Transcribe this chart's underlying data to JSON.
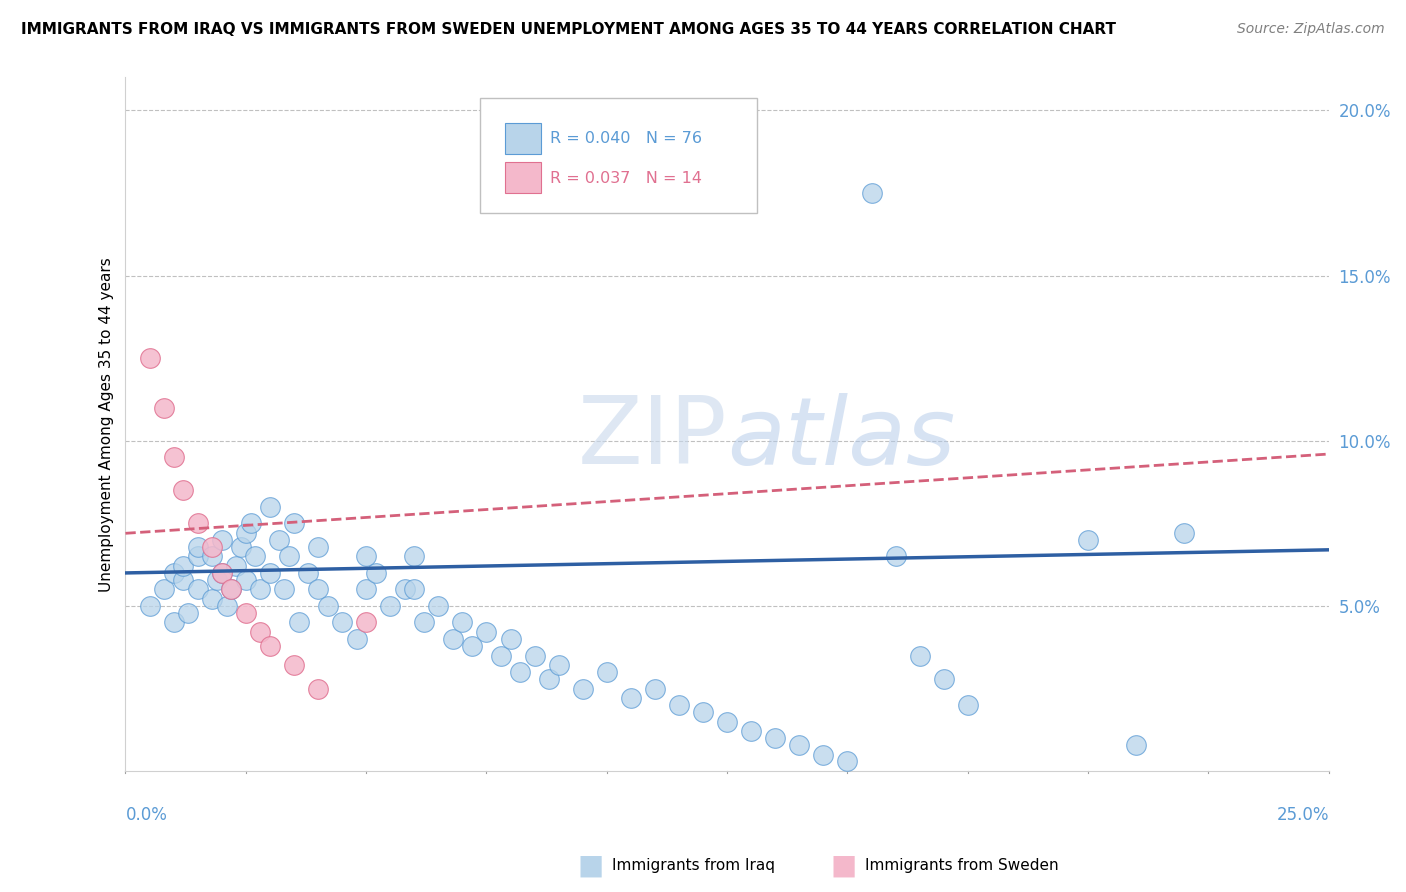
{
  "title": "IMMIGRANTS FROM IRAQ VS IMMIGRANTS FROM SWEDEN UNEMPLOYMENT AMONG AGES 35 TO 44 YEARS CORRELATION CHART",
  "source": "Source: ZipAtlas.com",
  "ylabel": "Unemployment Among Ages 35 to 44 years",
  "xlim": [
    0.0,
    0.25
  ],
  "ylim": [
    0.0,
    0.21
  ],
  "yticks": [
    0.05,
    0.1,
    0.15,
    0.2
  ],
  "ytick_labels": [
    "5.0%",
    "10.0%",
    "15.0%",
    "20.0%"
  ],
  "xtick_labels": [
    "0.0%",
    "25.0%"
  ],
  "iraq_R": 0.04,
  "iraq_N": 76,
  "sweden_R": 0.037,
  "sweden_N": 14,
  "iraq_color": "#b8d4ea",
  "iraq_edge_color": "#5b9bd5",
  "sweden_color": "#f4b8cb",
  "sweden_edge_color": "#e07090",
  "iraq_line_color": "#2e5fa3",
  "sweden_line_color": "#d4607a",
  "watermark_color": "#d0dff0",
  "iraq_x": [
    0.005,
    0.008,
    0.01,
    0.01,
    0.012,
    0.012,
    0.013,
    0.015,
    0.015,
    0.015,
    0.018,
    0.018,
    0.019,
    0.02,
    0.02,
    0.021,
    0.022,
    0.023,
    0.024,
    0.025,
    0.025,
    0.026,
    0.027,
    0.028,
    0.03,
    0.03,
    0.032,
    0.033,
    0.034,
    0.035,
    0.036,
    0.038,
    0.04,
    0.04,
    0.042,
    0.045,
    0.048,
    0.05,
    0.05,
    0.052,
    0.055,
    0.058,
    0.06,
    0.06,
    0.062,
    0.065,
    0.068,
    0.07,
    0.072,
    0.075,
    0.078,
    0.08,
    0.082,
    0.085,
    0.088,
    0.09,
    0.095,
    0.1,
    0.105,
    0.11,
    0.115,
    0.12,
    0.125,
    0.13,
    0.135,
    0.14,
    0.145,
    0.15,
    0.155,
    0.16,
    0.165,
    0.17,
    0.175,
    0.2,
    0.21,
    0.22
  ],
  "iraq_y": [
    0.05,
    0.055,
    0.06,
    0.045,
    0.058,
    0.062,
    0.048,
    0.065,
    0.055,
    0.068,
    0.052,
    0.065,
    0.058,
    0.07,
    0.06,
    0.05,
    0.055,
    0.062,
    0.068,
    0.072,
    0.058,
    0.075,
    0.065,
    0.055,
    0.08,
    0.06,
    0.07,
    0.055,
    0.065,
    0.075,
    0.045,
    0.06,
    0.055,
    0.068,
    0.05,
    0.045,
    0.04,
    0.065,
    0.055,
    0.06,
    0.05,
    0.055,
    0.055,
    0.065,
    0.045,
    0.05,
    0.04,
    0.045,
    0.038,
    0.042,
    0.035,
    0.04,
    0.03,
    0.035,
    0.028,
    0.032,
    0.025,
    0.03,
    0.022,
    0.025,
    0.02,
    0.018,
    0.015,
    0.012,
    0.01,
    0.008,
    0.005,
    0.003,
    0.175,
    0.065,
    0.035,
    0.028,
    0.02,
    0.07,
    0.008,
    0.072
  ],
  "sweden_x": [
    0.005,
    0.008,
    0.01,
    0.012,
    0.015,
    0.018,
    0.02,
    0.022,
    0.025,
    0.028,
    0.03,
    0.035,
    0.04,
    0.05
  ],
  "sweden_y": [
    0.125,
    0.11,
    0.095,
    0.085,
    0.075,
    0.068,
    0.06,
    0.055,
    0.048,
    0.042,
    0.038,
    0.032,
    0.025,
    0.045
  ],
  "iraq_trend_x": [
    0.0,
    0.25
  ],
  "iraq_trend_y": [
    0.06,
    0.067
  ],
  "sweden_trend_x": [
    0.0,
    0.25
  ],
  "sweden_trend_y": [
    0.072,
    0.096
  ]
}
